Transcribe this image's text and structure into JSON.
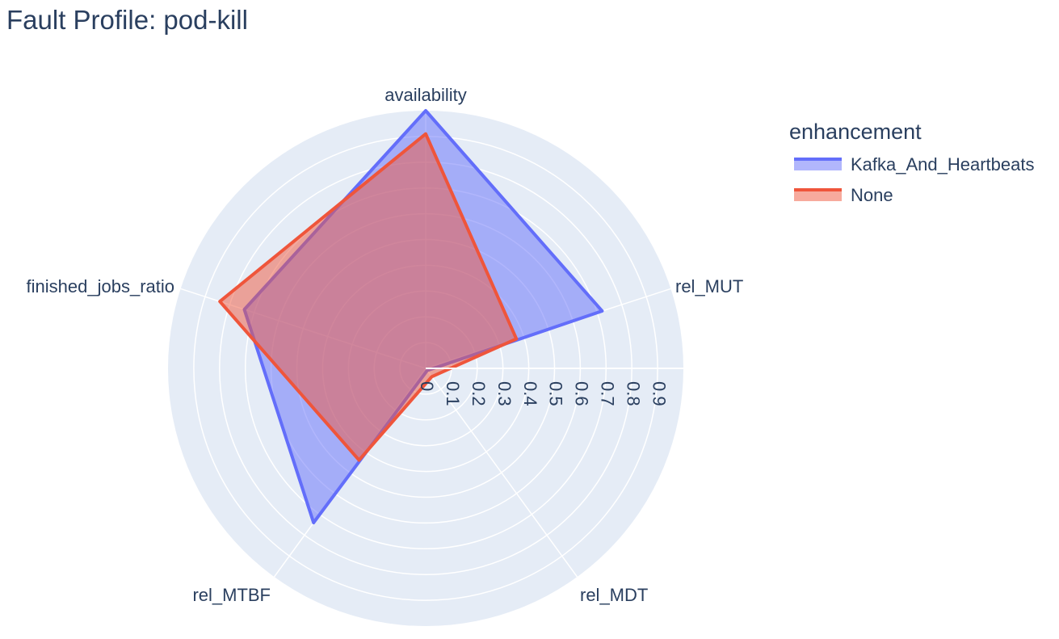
{
  "chart_data": {
    "type": "radar",
    "title": "Fault Profile: pod-kill",
    "categories": [
      "availability",
      "rel_MUT",
      "rel_MDT",
      "rel_MTBF",
      "finished_jobs_ratio"
    ],
    "radial_range": [
      0,
      1.0
    ],
    "radial_ticks": [
      "0",
      "0.1",
      "0.2",
      "0.3",
      "0.4",
      "0.5",
      "0.6",
      "0.7",
      "0.8",
      "0.9"
    ],
    "grid": true,
    "legend": {
      "title": "enhancement",
      "placement": "top-right"
    },
    "series": [
      {
        "name": "Kafka_And_Heartbeats",
        "values": [
          1.0,
          0.72,
          0.01,
          0.74,
          0.74
        ],
        "color": "#636efa",
        "fill": "rgba(99,110,250,0.5)"
      },
      {
        "name": "None",
        "values": [
          0.91,
          0.37,
          0.04,
          0.44,
          0.84
        ],
        "color": "#ef553b",
        "fill": "rgba(239,85,59,0.5)"
      }
    ],
    "background_color": "#e5ecf6",
    "grid_color": "#ffffff"
  }
}
